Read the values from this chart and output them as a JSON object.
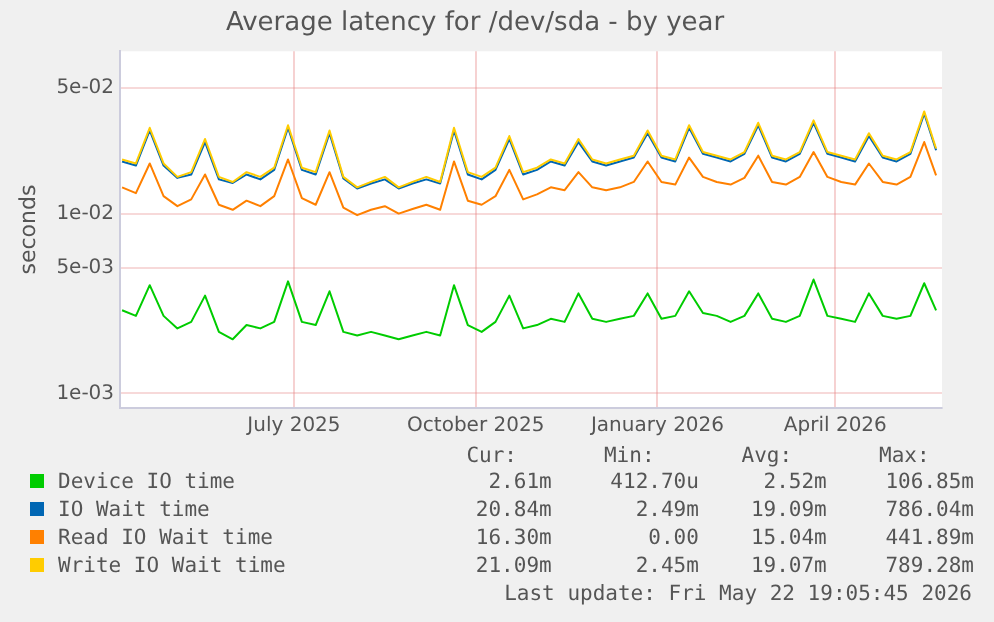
{
  "chart_data": {
    "type": "line",
    "title": "Average latency for /dev/sda - by year",
    "ylabel": "seconds",
    "x": [
      "2025-04-05",
      "2025-04-12",
      "2025-04-19",
      "2025-04-26",
      "2025-05-03",
      "2025-05-10",
      "2025-05-17",
      "2025-05-24",
      "2025-05-31",
      "2025-06-07",
      "2025-06-14",
      "2025-06-21",
      "2025-06-28",
      "2025-07-05",
      "2025-07-12",
      "2025-07-19",
      "2025-07-26",
      "2025-08-02",
      "2025-08-09",
      "2025-08-16",
      "2025-08-23",
      "2025-08-30",
      "2025-09-06",
      "2025-09-13",
      "2025-09-20",
      "2025-09-27",
      "2025-10-04",
      "2025-10-11",
      "2025-10-18",
      "2025-10-25",
      "2025-11-01",
      "2025-11-08",
      "2025-11-15",
      "2025-11-22",
      "2025-11-29",
      "2025-12-06",
      "2025-12-13",
      "2025-12-20",
      "2025-12-27",
      "2026-01-03",
      "2026-01-10",
      "2026-01-17",
      "2026-01-24",
      "2026-01-31",
      "2026-02-07",
      "2026-02-14",
      "2026-02-21",
      "2026-02-28",
      "2026-03-07",
      "2026-03-14",
      "2026-03-21",
      "2026-03-28",
      "2026-04-04",
      "2026-04-11",
      "2026-04-18",
      "2026-04-25",
      "2026-05-02",
      "2026-05-09",
      "2026-05-16",
      "2026-05-22"
    ],
    "series": [
      {
        "name": "Device IO time",
        "color": "#00cc00",
        "values": [
          0.0029,
          0.0027,
          0.004,
          0.0027,
          0.0023,
          0.0025,
          0.0035,
          0.0022,
          0.002,
          0.0024,
          0.0023,
          0.0025,
          0.0042,
          0.0025,
          0.0024,
          0.0037,
          0.0022,
          0.0021,
          0.0022,
          0.0021,
          0.002,
          0.0021,
          0.0022,
          0.0021,
          0.004,
          0.0024,
          0.0022,
          0.0025,
          0.0035,
          0.0023,
          0.0024,
          0.0026,
          0.0025,
          0.0036,
          0.0026,
          0.0025,
          0.0026,
          0.0027,
          0.0036,
          0.0026,
          0.0027,
          0.0037,
          0.0028,
          0.0027,
          0.0025,
          0.0027,
          0.0036,
          0.0026,
          0.0025,
          0.0027,
          0.0043,
          0.0027,
          0.0026,
          0.0025,
          0.0036,
          0.0027,
          0.0026,
          0.0027,
          0.0041,
          0.0029
        ]
      },
      {
        "name": "IO Wait time",
        "color": "#0066b3",
        "values": [
          0.0195,
          0.0185,
          0.029,
          0.0185,
          0.0158,
          0.0165,
          0.025,
          0.0155,
          0.0148,
          0.0165,
          0.0155,
          0.0175,
          0.03,
          0.0175,
          0.0165,
          0.028,
          0.0157,
          0.0138,
          0.0147,
          0.0155,
          0.0138,
          0.0147,
          0.0155,
          0.0147,
          0.029,
          0.0165,
          0.0155,
          0.0175,
          0.026,
          0.0165,
          0.0175,
          0.0195,
          0.0185,
          0.025,
          0.0195,
          0.0185,
          0.0195,
          0.0205,
          0.028,
          0.0205,
          0.0195,
          0.03,
          0.0215,
          0.0205,
          0.0195,
          0.0215,
          0.031,
          0.0205,
          0.0195,
          0.0215,
          0.032,
          0.0215,
          0.0205,
          0.0195,
          0.027,
          0.0205,
          0.0195,
          0.0215,
          0.036,
          0.0225
        ]
      },
      {
        "name": "Read IO Wait time",
        "color": "#ff8000",
        "values": [
          0.014,
          0.013,
          0.019,
          0.0125,
          0.011,
          0.012,
          0.0165,
          0.0112,
          0.0105,
          0.0118,
          0.011,
          0.0125,
          0.02,
          0.0122,
          0.0112,
          0.017,
          0.0108,
          0.0098,
          0.0105,
          0.011,
          0.01,
          0.0106,
          0.0112,
          0.0105,
          0.0195,
          0.0118,
          0.0112,
          0.0125,
          0.0175,
          0.012,
          0.0128,
          0.014,
          0.0135,
          0.017,
          0.014,
          0.0135,
          0.014,
          0.015,
          0.0195,
          0.015,
          0.0145,
          0.0205,
          0.016,
          0.015,
          0.0145,
          0.0158,
          0.021,
          0.015,
          0.0145,
          0.016,
          0.022,
          0.016,
          0.015,
          0.0145,
          0.019,
          0.015,
          0.0145,
          0.016,
          0.025,
          0.0163
        ]
      },
      {
        "name": "Write IO Wait time",
        "color": "#ffcc00",
        "values": [
          0.02,
          0.019,
          0.03,
          0.019,
          0.016,
          0.017,
          0.026,
          0.016,
          0.015,
          0.017,
          0.016,
          0.018,
          0.031,
          0.018,
          0.017,
          0.029,
          0.016,
          0.014,
          0.015,
          0.016,
          0.014,
          0.015,
          0.016,
          0.015,
          0.03,
          0.017,
          0.016,
          0.018,
          0.027,
          0.017,
          0.018,
          0.02,
          0.019,
          0.026,
          0.02,
          0.019,
          0.02,
          0.021,
          0.029,
          0.021,
          0.02,
          0.031,
          0.022,
          0.021,
          0.02,
          0.022,
          0.032,
          0.021,
          0.02,
          0.022,
          0.033,
          0.022,
          0.021,
          0.02,
          0.028,
          0.021,
          0.02,
          0.022,
          0.037,
          0.023
        ]
      }
    ],
    "xlim": [
      "2025-04-04",
      "2026-05-25"
    ],
    "xticks": [
      {
        "value": "2025-07-01",
        "label": "July 2025"
      },
      {
        "value": "2025-10-01",
        "label": "October 2025"
      },
      {
        "value": "2026-01-01",
        "label": "January 2026"
      },
      {
        "value": "2026-04-01",
        "label": "April 2026"
      }
    ],
    "ylim": [
      0.00083,
      0.08
    ],
    "yticks": [
      {
        "value": 0.001,
        "label": "1e-03"
      },
      {
        "value": 0.005,
        "label": "5e-03"
      },
      {
        "value": 0.01,
        "label": "1e-02"
      },
      {
        "value": 0.05,
        "label": "5e-02"
      }
    ],
    "log": "y",
    "grid": true,
    "legend": "bottom",
    "marker": "none",
    "line_style": "solid",
    "annotations": [
      "Cur:",
      "Min:",
      "Avg:",
      "Max:",
      "2.61m",
      "412.70u",
      "2.52m",
      "106.85m",
      "20.84m",
      "2.49m",
      "19.09m",
      "786.04m",
      "16.30m",
      "0.00",
      "15.04m",
      "441.89m",
      "21.09m",
      "2.45m",
      "19.07m",
      "789.28m",
      "Last update: Fri May 22 19:05:45 2026"
    ]
  }
}
